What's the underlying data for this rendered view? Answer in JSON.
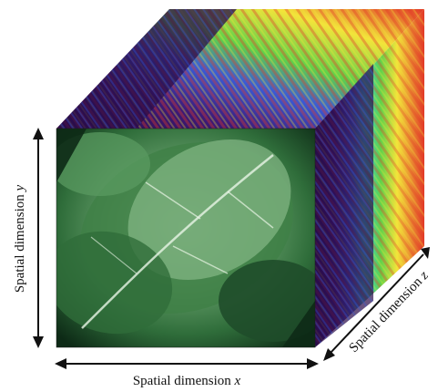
{
  "figure": {
    "axes": {
      "x": {
        "label": "Spatial dimension ",
        "var": "x"
      },
      "y": {
        "label": "Spatial dimension ",
        "var": "y"
      },
      "z": {
        "label": "Spatial dimension ",
        "var": "z"
      }
    },
    "colors": {
      "background": "#ffffff",
      "arrow": "#111111",
      "cube_dark": "#2a0c4a",
      "cube_purple": "#3d1a78",
      "cube_blue": "#3a5bd6",
      "cube_cyan": "#36d0d6",
      "cube_green": "#5fd24a",
      "cube_yellow": "#f2e43a",
      "cube_red": "#e23a28",
      "leaf_dark": "#0d2a16",
      "leaf_mid": "#2f6d3a",
      "leaf_light": "#9dc99a"
    }
  }
}
